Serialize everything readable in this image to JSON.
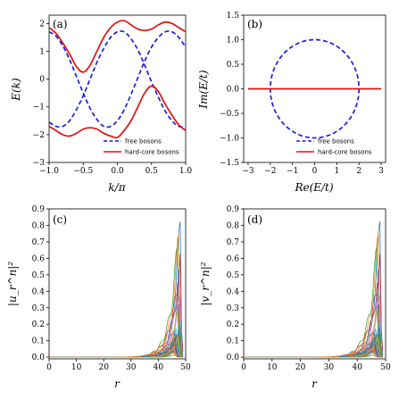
{
  "chart_data": [
    {
      "panel_label": "(a)",
      "type": "line",
      "xlabel": "k/π",
      "ylabel": "E(k)",
      "xlim": [
        -1.0,
        1.0
      ],
      "ylim": [
        -3,
        2.3
      ],
      "xticks": [
        "−1.0",
        "−0.5",
        "0.0",
        "0.5",
        "1.0"
      ],
      "yticks": [
        "−3",
        "−2",
        "−1",
        "0",
        "1",
        "2"
      ],
      "legend": {
        "position": "lower-right",
        "entries": [
          "free bosons",
          "hard-core bosons"
        ]
      },
      "series": [
        {
          "name": "free bosons",
          "style": "dashed",
          "color": "#1f1fd6",
          "x": [
            -1.0,
            -0.9,
            -0.8,
            -0.7,
            -0.6,
            -0.5,
            -0.4,
            -0.3,
            -0.2,
            -0.1,
            0.0,
            0.1,
            0.2,
            0.3,
            0.4,
            0.5,
            0.6,
            0.7,
            0.8,
            0.9,
            1.0
          ],
          "values": [
            1.7,
            1.55,
            1.2,
            0.7,
            0.1,
            -0.5,
            -1.05,
            -1.45,
            -1.7,
            -1.7,
            -1.5,
            -1.1,
            -0.55,
            0.05,
            0.65,
            1.15,
            1.5,
            1.7,
            1.7,
            1.5,
            1.15
          ]
        },
        {
          "name": "free bosons",
          "style": "dashed",
          "color": "#1f1fd6",
          "x": [
            -1.0,
            -0.9,
            -0.8,
            -0.7,
            -0.6,
            -0.5,
            -0.4,
            -0.3,
            -0.2,
            -0.1,
            0.0,
            0.1,
            0.2,
            0.3,
            0.4,
            0.5,
            0.6,
            0.7,
            0.8,
            0.9,
            1.0
          ],
          "values": [
            -1.55,
            -1.7,
            -1.7,
            -1.5,
            -1.1,
            -0.6,
            0.0,
            0.6,
            1.1,
            1.5,
            1.7,
            1.7,
            1.45,
            1.05,
            0.5,
            -0.1,
            -0.65,
            -1.15,
            -1.5,
            -1.7,
            -1.7
          ]
        },
        {
          "name": "hard-core bosons",
          "style": "solid",
          "color": "#e01010",
          "x": [
            -1.0,
            -0.9,
            -0.8,
            -0.7,
            -0.6,
            -0.5,
            -0.4,
            -0.3,
            -0.2,
            -0.1,
            0.0,
            0.1,
            0.2,
            0.3,
            0.4,
            0.5,
            0.6,
            0.7,
            0.8,
            0.9,
            1.0
          ],
          "values": [
            1.85,
            1.65,
            1.3,
            0.9,
            0.45,
            0.25,
            0.5,
            1.0,
            1.5,
            1.85,
            2.05,
            2.1,
            1.95,
            1.8,
            1.75,
            1.8,
            1.95,
            2.05,
            2.0,
            1.85,
            1.7
          ]
        },
        {
          "name": "hard-core bosons",
          "style": "solid",
          "color": "#e01010",
          "x": [
            -1.0,
            -0.9,
            -0.8,
            -0.7,
            -0.6,
            -0.5,
            -0.4,
            -0.3,
            -0.2,
            -0.1,
            0.0,
            0.1,
            0.2,
            0.3,
            0.4,
            0.5,
            0.6,
            0.7,
            0.8,
            0.9,
            1.0
          ],
          "values": [
            -1.7,
            -1.85,
            -2.0,
            -2.05,
            -1.95,
            -1.8,
            -1.75,
            -1.8,
            -1.95,
            -2.05,
            -2.1,
            -1.85,
            -1.5,
            -1.0,
            -0.5,
            -0.25,
            -0.45,
            -0.9,
            -1.3,
            -1.65,
            -1.85
          ]
        }
      ]
    },
    {
      "panel_label": "(b)",
      "type": "line",
      "xlabel": "Re(E/t)",
      "ylabel": "Im(E/t)",
      "xlim": [
        -3.2,
        3.2
      ],
      "ylim": [
        -1.5,
        1.5
      ],
      "xticks": [
        "−3",
        "−2",
        "−1",
        "0",
        "1",
        "2",
        "3"
      ],
      "yticks": [
        "−1.5",
        "−1.0",
        "−0.5",
        "0.0",
        "0.5",
        "1.0",
        "1.5"
      ],
      "legend": {
        "position": "lower-right",
        "entries": [
          "free bosons",
          "hard-core bosons"
        ]
      },
      "series": [
        {
          "name": "free bosons",
          "style": "dashed",
          "color": "#1f1fd6",
          "shape": "ellipse",
          "center": [
            0,
            0
          ],
          "radius_x": 2,
          "radius_y": 1
        },
        {
          "name": "hard-core bosons",
          "style": "solid",
          "color": "#e01010",
          "x": [
            -3.0,
            3.0
          ],
          "values": [
            0,
            0
          ]
        }
      ]
    },
    {
      "panel_label": "(c)",
      "type": "line",
      "xlabel": "r",
      "ylabel": "|u_r^n|²",
      "xlim": [
        0,
        50
      ],
      "ylim": [
        -0.01,
        0.9
      ],
      "xticks": [
        "0",
        "10",
        "20",
        "30",
        "40",
        "50"
      ],
      "yticks": [
        "0.0",
        "0.1",
        "0.2",
        "0.3",
        "0.4",
        "0.5",
        "0.6",
        "0.7",
        "0.8",
        "0.9"
      ],
      "series_note": "many eigenmodes localized at right edge",
      "edge_peaks": [
        0.88,
        0.78,
        0.68,
        0.6,
        0.52,
        0.45,
        0.38,
        0.32,
        0.27,
        0.22,
        0.18,
        0.14
      ],
      "decay_length": 2.2,
      "edge_site": 48
    },
    {
      "panel_label": "(d)",
      "type": "line",
      "xlabel": "r",
      "ylabel": "|v_r^n|²",
      "xlim": [
        0,
        50
      ],
      "ylim": [
        -0.01,
        0.9
      ],
      "xticks": [
        "0",
        "10",
        "20",
        "30",
        "40",
        "50"
      ],
      "yticks": [
        "0.0",
        "0.1",
        "0.2",
        "0.3",
        "0.4",
        "0.5",
        "0.6",
        "0.7",
        "0.8",
        "0.9"
      ],
      "series_note": "many eigenmodes localized at right edge",
      "edge_peaks": [
        0.88,
        0.78,
        0.68,
        0.6,
        0.52,
        0.45,
        0.38,
        0.32,
        0.27,
        0.22,
        0.18,
        0.14
      ],
      "decay_length": 2.2,
      "edge_site": 48
    }
  ],
  "mode_colors": [
    "#1f77b4",
    "#ff7f0e",
    "#2ca02c",
    "#d62728",
    "#9467bd",
    "#8c564b",
    "#e377c2",
    "#7f7f7f",
    "#bcbd22",
    "#17becf"
  ]
}
